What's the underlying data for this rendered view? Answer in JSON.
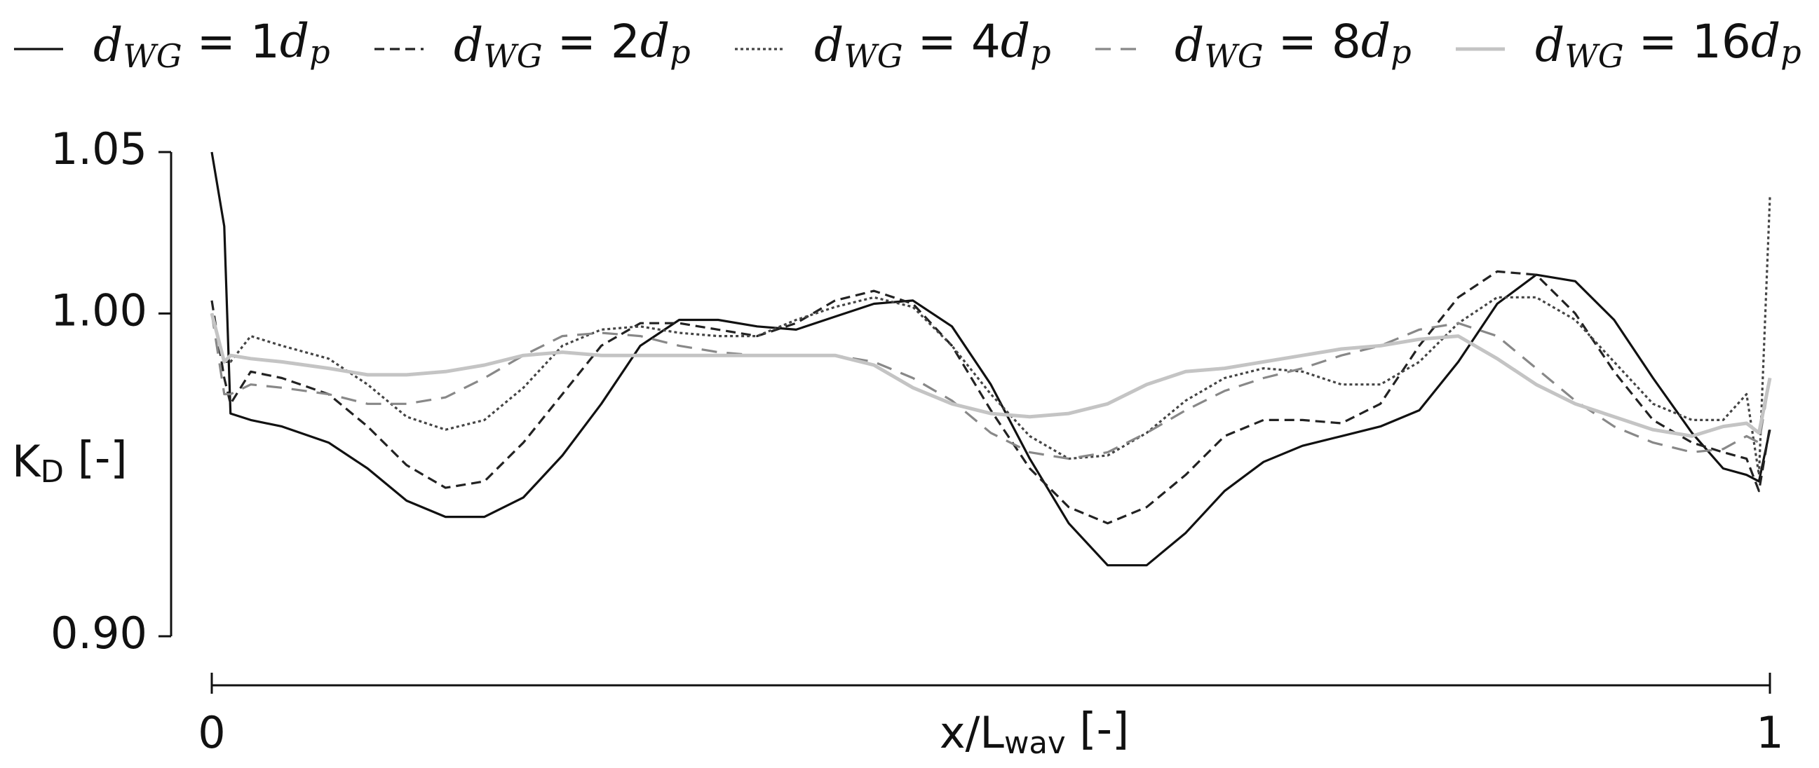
{
  "chart_data": {
    "type": "line",
    "x_label": "x/Lwav [-]",
    "y_label": "KD [-]",
    "x": [
      0,
      0.008,
      0.012,
      0.025,
      0.045,
      0.075,
      0.1,
      0.125,
      0.15,
      0.175,
      0.2,
      0.225,
      0.25,
      0.275,
      0.3,
      0.325,
      0.35,
      0.375,
      0.4,
      0.425,
      0.45,
      0.475,
      0.5,
      0.525,
      0.55,
      0.575,
      0.6,
      0.625,
      0.65,
      0.675,
      0.7,
      0.725,
      0.75,
      0.775,
      0.8,
      0.825,
      0.85,
      0.875,
      0.9,
      0.925,
      0.95,
      0.97,
      0.985,
      0.993,
      1.0
    ],
    "xlim": [
      0,
      1
    ],
    "xticks": [
      0,
      1
    ],
    "ylim": [
      0.9,
      1.05
    ],
    "yticks": [
      {
        "value": 0.9,
        "label": "0.90"
      },
      {
        "value": 1.0,
        "label": "1.00"
      },
      {
        "value": 1.05,
        "label": "1.05"
      }
    ],
    "legend": "top",
    "series": [
      {
        "name": "dWG = 1dp",
        "color": "#111111",
        "linestyle": "solid",
        "values": [
          1.05,
          1.027,
          0.969,
          0.967,
          0.965,
          0.96,
          0.952,
          0.942,
          0.937,
          0.937,
          0.943,
          0.956,
          0.972,
          0.99,
          0.998,
          0.998,
          0.996,
          0.995,
          0.999,
          1.003,
          1.004,
          0.996,
          0.978,
          0.955,
          0.935,
          0.922,
          0.922,
          0.932,
          0.945,
          0.954,
          0.959,
          0.962,
          0.965,
          0.97,
          0.985,
          1.003,
          1.012,
          1.01,
          0.998,
          0.98,
          0.963,
          0.952,
          0.95,
          0.948,
          0.964
        ]
      },
      {
        "name": "dWG = 2dp",
        "color": "#222222",
        "linestyle": "dashed",
        "values": [
          1.004,
          0.98,
          0.972,
          0.982,
          0.98,
          0.975,
          0.965,
          0.953,
          0.946,
          0.948,
          0.96,
          0.975,
          0.99,
          0.997,
          0.997,
          0.995,
          0.993,
          0.997,
          1.004,
          1.007,
          1.003,
          0.99,
          0.97,
          0.952,
          0.94,
          0.935,
          0.94,
          0.95,
          0.962,
          0.967,
          0.967,
          0.966,
          0.972,
          0.99,
          1.005,
          1.013,
          1.012,
          1.0,
          0.982,
          0.967,
          0.96,
          0.957,
          0.955,
          0.945,
          0.965
        ]
      },
      {
        "name": "dWG = 4dp",
        "color": "#444444",
        "linestyle": "dotted",
        "values": [
          1.0,
          0.985,
          0.985,
          0.993,
          0.99,
          0.986,
          0.978,
          0.968,
          0.964,
          0.967,
          0.977,
          0.99,
          0.995,
          0.996,
          0.994,
          0.993,
          0.993,
          0.998,
          1.002,
          1.005,
          1.002,
          0.99,
          0.975,
          0.962,
          0.955,
          0.956,
          0.963,
          0.973,
          0.98,
          0.983,
          0.982,
          0.978,
          0.978,
          0.985,
          0.997,
          1.005,
          1.005,
          0.998,
          0.985,
          0.972,
          0.967,
          0.967,
          0.975,
          0.95,
          1.036
        ]
      },
      {
        "name": "dWG = 8dp",
        "color": "#888888",
        "linestyle": "longdash",
        "values": [
          1.0,
          0.975,
          0.975,
          0.978,
          0.977,
          0.975,
          0.972,
          0.972,
          0.974,
          0.98,
          0.987,
          0.993,
          0.994,
          0.993,
          0.99,
          0.988,
          0.987,
          0.987,
          0.987,
          0.985,
          0.98,
          0.973,
          0.963,
          0.957,
          0.955,
          0.957,
          0.963,
          0.97,
          0.976,
          0.98,
          0.983,
          0.987,
          0.99,
          0.995,
          0.997,
          0.993,
          0.983,
          0.973,
          0.965,
          0.96,
          0.957,
          0.958,
          0.962,
          0.96,
          0.98
        ]
      },
      {
        "name": "dWG = 16dp",
        "color": "#c4c4c4",
        "linestyle": "solid",
        "values": [
          1.0,
          0.985,
          0.987,
          0.986,
          0.985,
          0.983,
          0.981,
          0.981,
          0.982,
          0.984,
          0.987,
          0.988,
          0.987,
          0.987,
          0.987,
          0.987,
          0.987,
          0.987,
          0.987,
          0.984,
          0.977,
          0.972,
          0.969,
          0.968,
          0.969,
          0.972,
          0.978,
          0.982,
          0.983,
          0.985,
          0.987,
          0.989,
          0.99,
          0.992,
          0.993,
          0.986,
          0.978,
          0.972,
          0.968,
          0.964,
          0.962,
          0.965,
          0.966,
          0.963,
          0.98
        ]
      }
    ]
  }
}
